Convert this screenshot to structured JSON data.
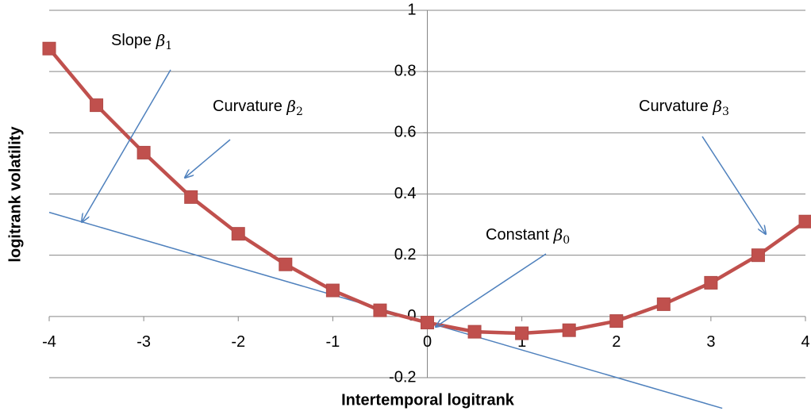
{
  "chart_data": {
    "type": "line",
    "x_label": "Intertemporal logitrank",
    "y_label": "logitrank  volatility",
    "x": [
      -4,
      -3.5,
      -3,
      -2.5,
      -2,
      -1.5,
      -1,
      -0.5,
      0,
      0.5,
      1,
      1.5,
      2,
      2.5,
      3,
      3.5,
      4
    ],
    "series": [
      {
        "color": "#c0504d",
        "values": [
          0.875,
          0.69,
          0.535,
          0.39,
          0.27,
          0.17,
          0.085,
          0.02,
          -0.02,
          -0.05,
          -0.055,
          -0.045,
          -0.015,
          0.04,
          0.11,
          0.2,
          0.31
        ]
      }
    ],
    "tangent_line": {
      "color": "#4f81bd",
      "x": [
        -4,
        3.12
      ],
      "values": [
        0.34,
        -0.3
      ]
    },
    "xlim": [
      -4,
      4
    ],
    "xticks": [
      -4,
      -3,
      -2,
      -1,
      0,
      1,
      2,
      3,
      4
    ],
    "ylim": [
      -0.2,
      1
    ],
    "yticks": [
      -0.2,
      0,
      0.2,
      0.4,
      0.6,
      0.8,
      1
    ],
    "grid": true,
    "annotations": [
      {
        "label": "Slope",
        "symbol": "β",
        "subscript": "1"
      },
      {
        "label": "Curvature",
        "symbol": "β",
        "subscript": "2"
      },
      {
        "label": "Constant",
        "symbol": "β",
        "subscript": "0"
      },
      {
        "label": "Curvature",
        "symbol": "β",
        "subscript": "3"
      }
    ]
  }
}
